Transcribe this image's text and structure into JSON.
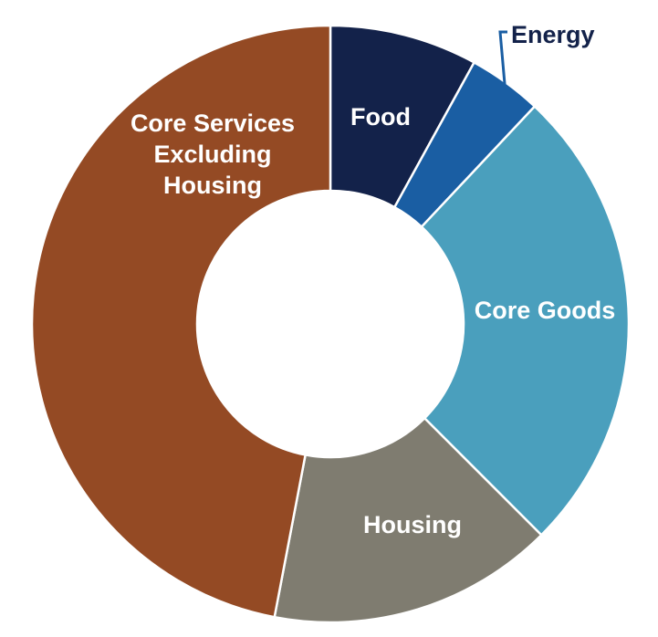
{
  "chart_data": {
    "type": "pie",
    "variant": "donut",
    "title": "",
    "legend": "none",
    "slices": [
      {
        "label": "Food",
        "value": 8.0,
        "color": "#13224a",
        "label_color": "#ffffff"
      },
      {
        "label": "Energy",
        "value": 4.0,
        "color": "#1a5ea3",
        "label_color": "#13224a",
        "callout": true
      },
      {
        "label": "Core Goods",
        "value": 25.5,
        "color": "#4a9fbd",
        "label_color": "#ffffff"
      },
      {
        "label": "Housing",
        "value": 15.5,
        "color": "#7f7c70",
        "label_color": "#ffffff"
      },
      {
        "label": "Core Services Excluding Housing",
        "label_lines": [
          "Core Services",
          "Excluding",
          "Housing"
        ],
        "value": 47.0,
        "color": "#944a24",
        "label_color": "#ffffff"
      }
    ]
  }
}
